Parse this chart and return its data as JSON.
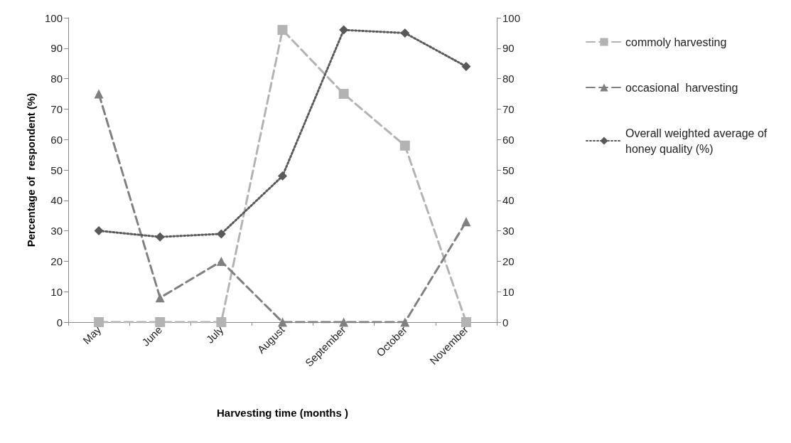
{
  "chart_data": {
    "type": "line",
    "xlabel": "Harvesting time (months )",
    "ylabel": "Percentage of  respondent (%)",
    "categories": [
      "May",
      "June",
      "July",
      "August",
      "September",
      "October",
      "November"
    ],
    "series": [
      {
        "name": "commoly harvesting",
        "color": "#b3b3b3",
        "marker": "square",
        "line_style": "dashed",
        "values": [
          0,
          0,
          0,
          96,
          75,
          58,
          0
        ]
      },
      {
        "name": "occasional  harvesting",
        "color": "#808080",
        "marker": "triangle",
        "line_style": "dashed",
        "values": [
          75,
          8,
          20,
          0,
          0,
          0,
          33
        ]
      },
      {
        "name": "Overall weighted average of honey quality (%)",
        "color": "#595959",
        "marker": "diamond",
        "line_style": "dotted",
        "axis": "y2",
        "values": [
          30,
          28,
          29,
          48,
          96,
          95,
          84
        ]
      }
    ],
    "ylim": [
      0,
      100
    ],
    "yticks": [
      0,
      10,
      20,
      30,
      40,
      50,
      60,
      70,
      80,
      90,
      100
    ],
    "y2lim": [
      0,
      100
    ],
    "y2ticks": [
      0,
      10,
      20,
      30,
      40,
      50,
      60,
      70,
      80,
      90,
      100
    ],
    "grid": false,
    "legend": "right"
  }
}
